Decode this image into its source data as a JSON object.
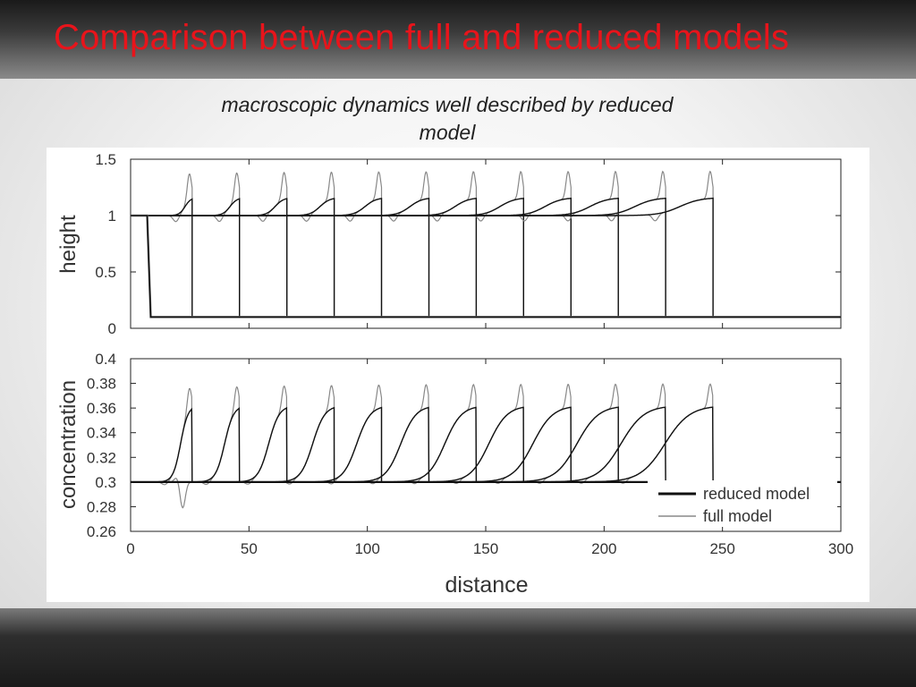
{
  "slide": {
    "title": "Comparison between full and reduced models",
    "subtitle_line1": "macroscopic dynamics well described by reduced",
    "subtitle_line2": "model"
  },
  "chart_data": [
    {
      "type": "line",
      "ylabel": "height",
      "xlim": [
        0,
        300
      ],
      "ylim": [
        0,
        1.5
      ],
      "yticks": [
        0,
        0.5,
        1,
        1.5
      ],
      "ytick_labels": [
        "0",
        "0.5",
        "1",
        "1.5"
      ],
      "grid": false,
      "pulse_fronts": [
        7,
        26,
        46,
        66,
        86,
        106,
        126,
        146,
        166,
        186,
        206,
        226,
        246
      ],
      "series": [
        {
          "name": "reduced model",
          "color": "#111111",
          "baseline_upstream": 1.0,
          "baseline_downstream": 0.1,
          "plateau": 1.16
        },
        {
          "name": "full model",
          "color": "#888888",
          "baseline_upstream": 1.0,
          "baseline_downstream": 0.1,
          "peak": 1.4
        }
      ]
    },
    {
      "type": "line",
      "xlabel": "distance",
      "ylabel": "concentration",
      "xlim": [
        0,
        300
      ],
      "ylim": [
        0.26,
        0.4
      ],
      "xticks": [
        0,
        50,
        100,
        150,
        200,
        250,
        300
      ],
      "xtick_labels": [
        "0",
        "50",
        "100",
        "150",
        "200",
        "250",
        "300"
      ],
      "yticks": [
        0.26,
        0.28,
        0.3,
        0.32,
        0.34,
        0.36,
        0.38,
        0.4
      ],
      "ytick_labels": [
        "0.26",
        "0.28",
        "0.3",
        "0.32",
        "0.34",
        "0.36",
        "0.38",
        "0.4"
      ],
      "grid": false,
      "legend": "bottom-right",
      "series": [
        {
          "name": "reduced model",
          "color": "#111111",
          "baseline": 0.3,
          "plateau": 0.362
        },
        {
          "name": "full model",
          "color": "#888888",
          "baseline": 0.3,
          "peak": 0.381
        }
      ]
    }
  ]
}
